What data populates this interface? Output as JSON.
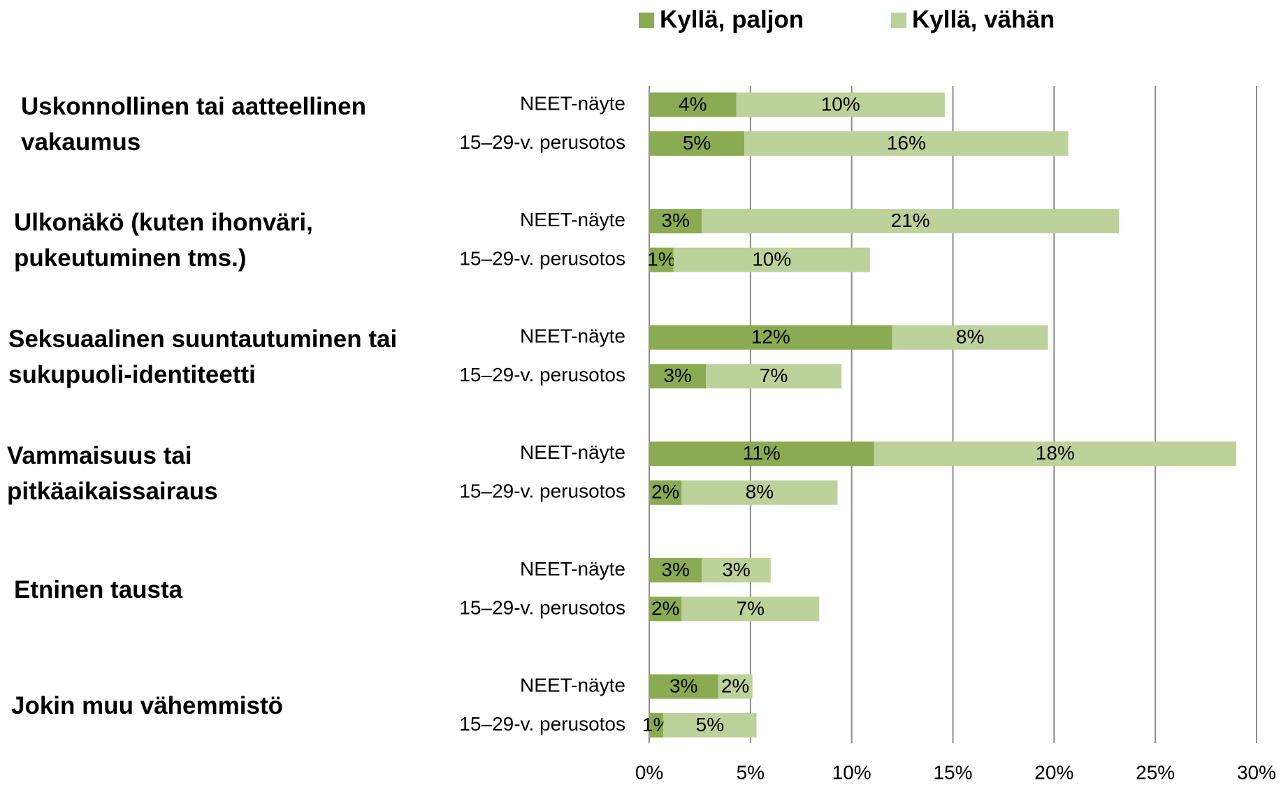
{
  "chart_data": {
    "type": "bar",
    "orientation": "horizontal",
    "stacked": true,
    "groups": [
      "Uskonnollinen tai aatteellinen vakaumus",
      "Ulkonäkö (kuten ihonväri, pukeutuminen tms.)",
      "Seksuaalinen suuntautuminen tai sukupuoli-identiteetti",
      "Vammaisuus tai pitkäaikaissairaus",
      "Etninen tausta",
      "Jokin muu vähemmistö"
    ],
    "categories": [
      "NEET-näyte",
      "15–29-v. perusotos",
      "NEET-näyte",
      "15–29-v. perusotos",
      "NEET-näyte",
      "15–29-v. perusotos",
      "NEET-näyte",
      "15–29-v. perusotos",
      "NEET-näyte",
      "15–29-v. perusotos",
      "NEET-näyte",
      "15–29-v. perusotos"
    ],
    "series": [
      {
        "name": "Kyllä, paljon",
        "color": "#8aab52",
        "values": [
          4.3,
          4.7,
          2.6,
          1.2,
          12.0,
          2.8,
          11.1,
          1.6,
          2.6,
          1.6,
          3.4,
          0.7
        ],
        "value_labels": [
          "4%",
          "5%",
          "3%",
          "1%",
          "12%",
          "3%",
          "11%",
          "2%",
          "3%",
          "2%",
          "3%",
          "1%"
        ]
      },
      {
        "name": "Kyllä, vähän",
        "color": "#bdd19b",
        "values": [
          10.3,
          16.0,
          20.6,
          9.7,
          7.7,
          6.7,
          17.9,
          7.7,
          3.4,
          6.8,
          1.7,
          4.6
        ],
        "value_labels": [
          "10%",
          "16%",
          "21%",
          "10%",
          "8%",
          "7%",
          "18%",
          "8%",
          "3%",
          "7%",
          "2%",
          "5%"
        ]
      }
    ],
    "xlim": [
      0,
      30
    ],
    "xticks": [
      {
        "value": 0,
        "label": "0%"
      },
      {
        "value": 5,
        "label": "5%"
      },
      {
        "value": 10,
        "label": "10%"
      },
      {
        "value": 15,
        "label": "15%"
      },
      {
        "value": 20,
        "label": "20%"
      },
      {
        "value": 25,
        "label": "25%"
      },
      {
        "value": 30,
        "label": "30%"
      }
    ],
    "grid": true,
    "legend": "top"
  }
}
